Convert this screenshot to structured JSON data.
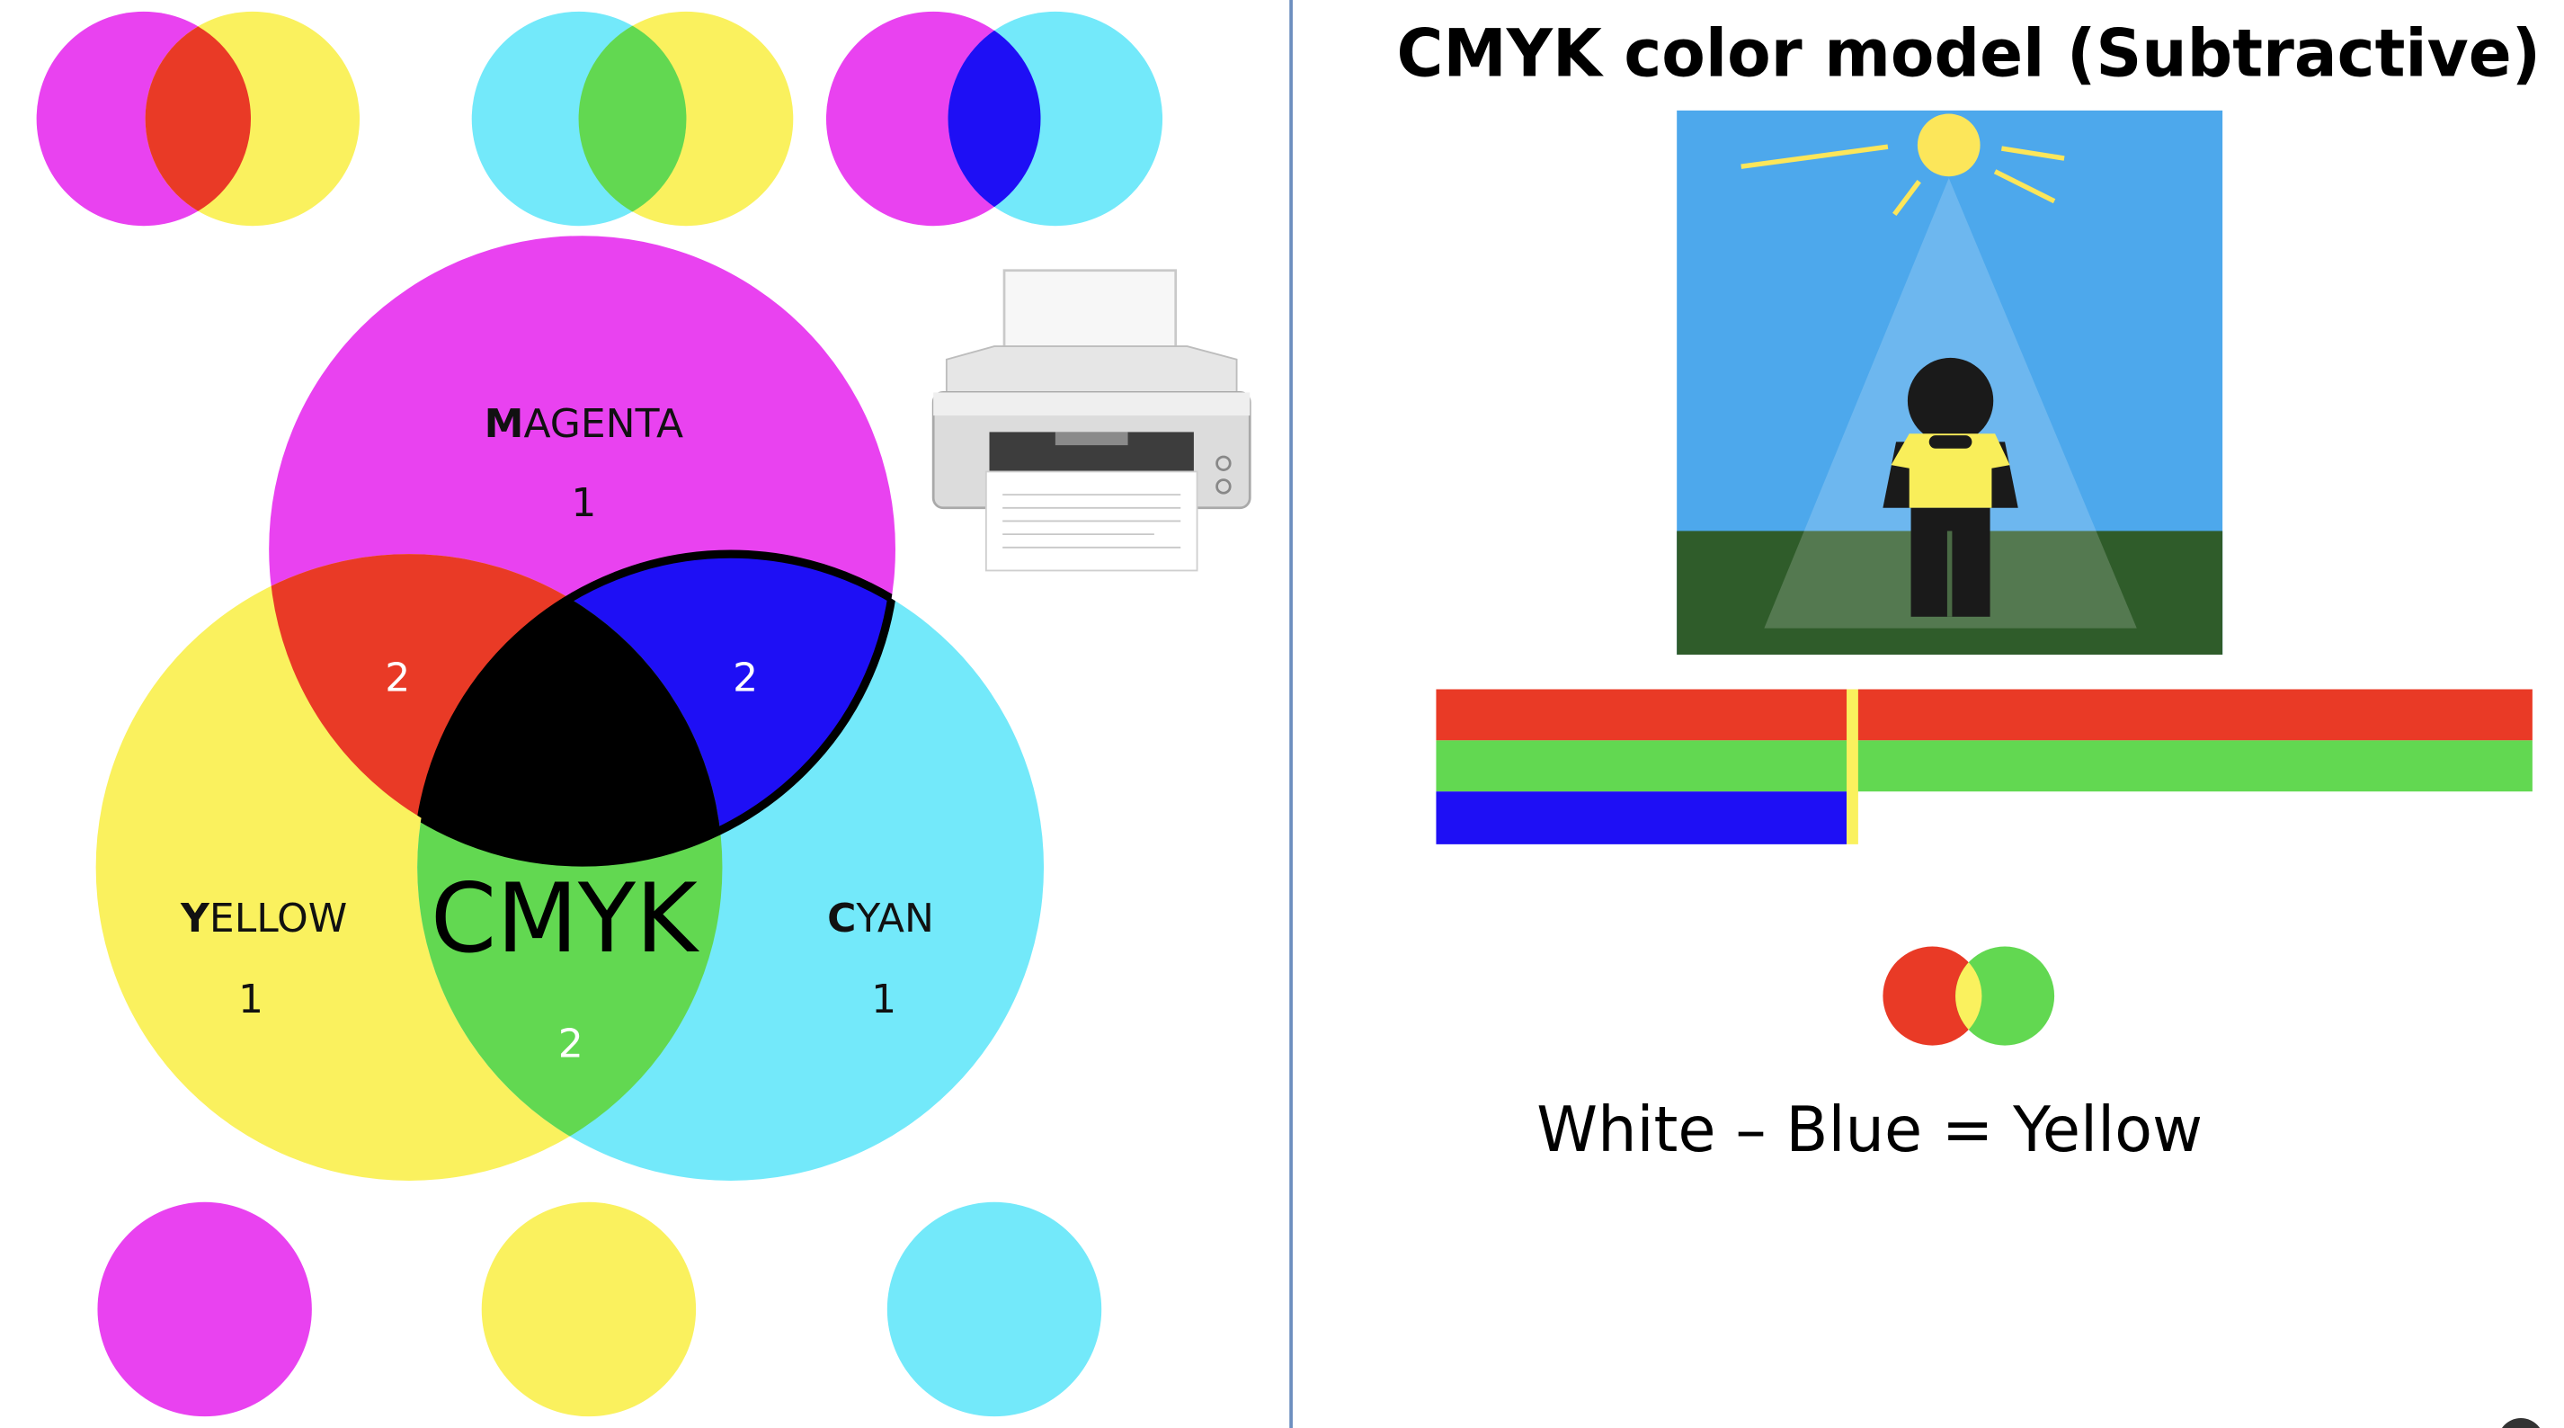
{
  "right_panel": {
    "title": "CMYK color model (Subtractive)",
    "equation": "White – Blue = Yellow"
  },
  "venn": {
    "labels": {
      "magenta": {
        "initial": "M",
        "rest": "AGENTA",
        "count": "1"
      },
      "yellow": {
        "initial": "Y",
        "rest": "ELLOW",
        "count": "1"
      },
      "cyan": {
        "initial": "C",
        "rest": "YAN",
        "count": "1"
      }
    },
    "overlap_counts": {
      "magenta_yellow": "2",
      "magenta_cyan": "2",
      "yellow_cyan": "2"
    },
    "center_text": "CMYK"
  },
  "colors": {
    "magenta": "#E942F0",
    "yellow": "#FAF15E",
    "cyan": "#73E9FA",
    "red": "#E93A26",
    "green": "#62D851",
    "blue": "#1E0FF5",
    "black": "#000000",
    "sky": "#4DA8EC",
    "grass": "#2F5C2A",
    "divider": "#6C8EBF"
  },
  "icons": {
    "printer": "printer-icon",
    "scene": "sun-person-scene"
  },
  "bars": [
    {
      "color": "red",
      "level": 1.0
    },
    {
      "color": "green",
      "level": 1.0
    },
    {
      "color": "blue",
      "level": 0.375
    }
  ]
}
